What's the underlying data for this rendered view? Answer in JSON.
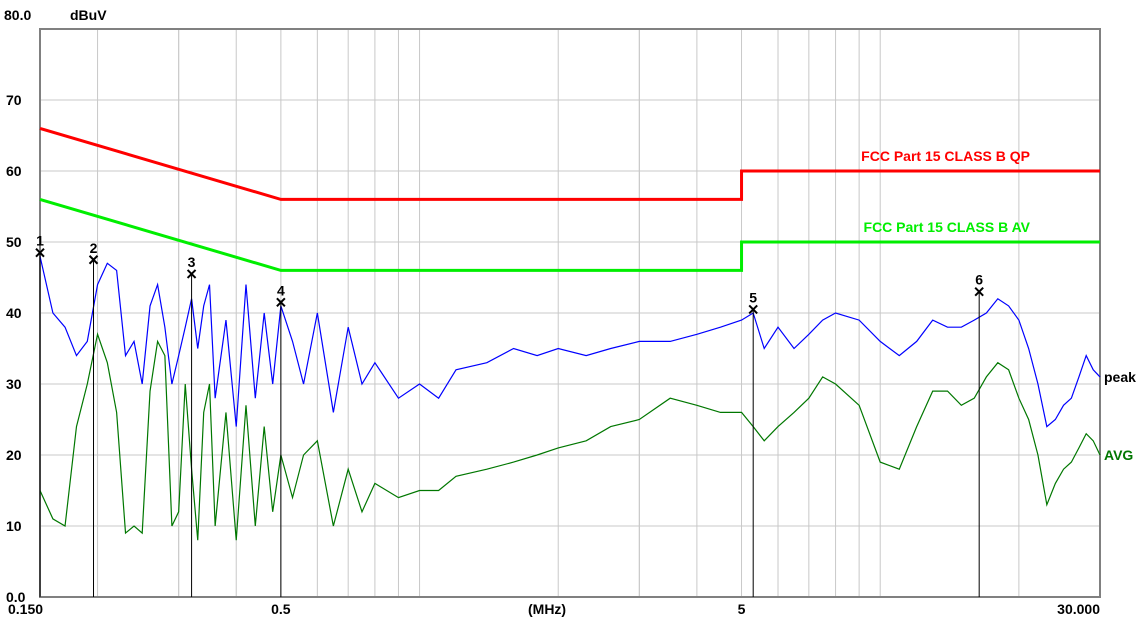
{
  "chart_data": {
    "type": "line",
    "y_axis": {
      "top_label": "80.0",
      "unit": "dBuV",
      "tick_labels": [
        "70",
        "60",
        "50",
        "40",
        "30",
        "20",
        "10",
        "0.0"
      ],
      "ticks": [
        70,
        60,
        50,
        40,
        30,
        20,
        10,
        0
      ],
      "ylim": [
        0,
        80
      ]
    },
    "x_axis": {
      "scale": "log",
      "xlim": [
        0.15,
        30.0
      ],
      "unit_label": "(MHz)",
      "tick_labels": [
        {
          "v": 0.15,
          "t": "0.150"
        },
        {
          "v": 0.5,
          "t": "0.5"
        },
        {
          "v": 5,
          "t": "5"
        },
        {
          "v": 30,
          "t": "30.000"
        }
      ]
    },
    "grid": true,
    "limits": [
      {
        "name": "FCC Part 15 CLASS B QP",
        "color": "#ff0000",
        "points": [
          [
            0.15,
            66
          ],
          [
            0.5,
            56
          ],
          [
            5,
            56
          ],
          [
            5,
            60
          ],
          [
            30,
            60
          ]
        ]
      },
      {
        "name": "FCC Part 15 CLASS B AV",
        "color": "#00ee00",
        "points": [
          [
            0.15,
            56
          ],
          [
            0.5,
            46
          ],
          [
            5,
            46
          ],
          [
            5,
            50
          ],
          [
            30,
            50
          ]
        ]
      }
    ],
    "series": [
      {
        "name": "peak",
        "color": "#0000ff",
        "x": [
          0.15,
          0.16,
          0.17,
          0.18,
          0.19,
          0.2,
          0.21,
          0.22,
          0.23,
          0.24,
          0.25,
          0.26,
          0.27,
          0.28,
          0.29,
          0.3,
          0.31,
          0.32,
          0.33,
          0.34,
          0.35,
          0.36,
          0.38,
          0.4,
          0.42,
          0.44,
          0.46,
          0.48,
          0.5,
          0.53,
          0.56,
          0.6,
          0.65,
          0.7,
          0.75,
          0.8,
          0.9,
          1.0,
          1.1,
          1.2,
          1.4,
          1.6,
          1.8,
          2.0,
          2.3,
          2.6,
          3.0,
          3.5,
          4.0,
          4.5,
          5.0,
          5.3,
          5.6,
          6.0,
          6.5,
          7.0,
          7.5,
          8.0,
          9.0,
          10.0,
          11.0,
          12.0,
          13.0,
          14.0,
          15.0,
          16.0,
          17.0,
          18.0,
          19.0,
          20.0,
          21.0,
          22.0,
          23.0,
          24.0,
          25.0,
          26.0,
          27.0,
          28.0,
          29.0,
          30.0
        ],
        "values": [
          48,
          40,
          38,
          34,
          36,
          44,
          47,
          46,
          34,
          36,
          30,
          41,
          44,
          38,
          30,
          34,
          38,
          42,
          35,
          41,
          44,
          28,
          39,
          24,
          44,
          28,
          40,
          30,
          41,
          36,
          30,
          40,
          26,
          38,
          30,
          33,
          28,
          30,
          28,
          32,
          33,
          35,
          34,
          35,
          34,
          35,
          36,
          36,
          37,
          38,
          39,
          40,
          35,
          38,
          35,
          37,
          39,
          40,
          39,
          36,
          34,
          36,
          39,
          38,
          38,
          39,
          40,
          42,
          41,
          39,
          35,
          30,
          24,
          25,
          27,
          28,
          31,
          34,
          32,
          31
        ]
      },
      {
        "name": "AVG",
        "color": "#007700",
        "x": [
          0.15,
          0.16,
          0.17,
          0.18,
          0.19,
          0.2,
          0.21,
          0.22,
          0.23,
          0.24,
          0.25,
          0.26,
          0.27,
          0.28,
          0.29,
          0.3,
          0.31,
          0.32,
          0.33,
          0.34,
          0.35,
          0.36,
          0.38,
          0.4,
          0.42,
          0.44,
          0.46,
          0.48,
          0.5,
          0.53,
          0.56,
          0.6,
          0.65,
          0.7,
          0.75,
          0.8,
          0.9,
          1.0,
          1.1,
          1.2,
          1.4,
          1.6,
          1.8,
          2.0,
          2.3,
          2.6,
          3.0,
          3.5,
          4.0,
          4.5,
          5.0,
          5.3,
          5.6,
          6.0,
          6.5,
          7.0,
          7.5,
          8.0,
          9.0,
          10.0,
          11.0,
          12.0,
          13.0,
          14.0,
          15.0,
          16.0,
          17.0,
          18.0,
          19.0,
          20.0,
          21.0,
          22.0,
          23.0,
          24.0,
          25.0,
          26.0,
          27.0,
          28.0,
          29.0,
          30.0
        ],
        "values": [
          15,
          11,
          10,
          24,
          30,
          37,
          33,
          26,
          9,
          10,
          9,
          29,
          36,
          34,
          10,
          12,
          30,
          18,
          8,
          26,
          30,
          10,
          26,
          8,
          27,
          10,
          24,
          12,
          20,
          14,
          20,
          22,
          10,
          18,
          12,
          16,
          14,
          15,
          15,
          17,
          18,
          19,
          20,
          21,
          22,
          24,
          25,
          28,
          27,
          26,
          26,
          24,
          22,
          24,
          26,
          28,
          31,
          30,
          27,
          19,
          18,
          24,
          29,
          29,
          27,
          28,
          31,
          33,
          32,
          28,
          25,
          20,
          13,
          16,
          18,
          19,
          21,
          23,
          22,
          20
        ]
      }
    ],
    "markers": [
      {
        "label": "1",
        "x": 0.15,
        "y": 48.5
      },
      {
        "label": "2",
        "x": 0.196,
        "y": 47.5
      },
      {
        "label": "3",
        "x": 0.32,
        "y": 45.5
      },
      {
        "label": "4",
        "x": 0.5,
        "y": 41.5
      },
      {
        "label": "5",
        "x": 5.3,
        "y": 40.5
      },
      {
        "label": "6",
        "x": 16.4,
        "y": 43.0
      }
    ]
  }
}
